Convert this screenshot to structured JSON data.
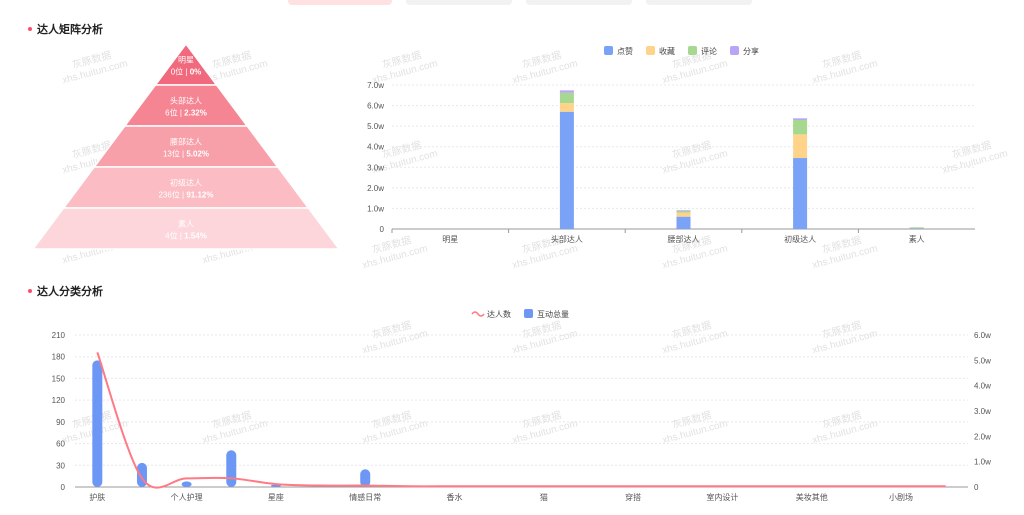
{
  "sections": {
    "matrix_title": "达人矩阵分析",
    "category_title": "达人分类分析"
  },
  "watermark": {
    "line1": "灰豚数据",
    "line2": "xhs.huitun.com"
  },
  "colors": {
    "like": "#7aa2f7",
    "collect": "#ffd48a",
    "comment": "#a6d98f",
    "share": "#b9a4f5",
    "line": "#ff7a85",
    "bar": "#6c97f5",
    "tabs": "#ffe1e1"
  },
  "chart_data": [
    {
      "type": "pyramid",
      "levels": [
        {
          "name": "明星",
          "count": "0位",
          "pct": "0%"
        },
        {
          "name": "头部达人",
          "count": "6位",
          "pct": "2.32%"
        },
        {
          "name": "腰部达人",
          "count": "13位",
          "pct": "5.02%"
        },
        {
          "name": "初级达人",
          "count": "236位",
          "pct": "91.12%"
        },
        {
          "name": "素人",
          "count": "4位",
          "pct": "1.54%"
        }
      ],
      "colors": [
        "#f0697c",
        "#f58593",
        "#f8a0aa",
        "#fbbcc3",
        "#fdd6db"
      ]
    },
    {
      "type": "bar",
      "stacked": true,
      "categories": [
        "明星",
        "头部达人",
        "腰部达人",
        "初级达人",
        "素人"
      ],
      "series": [
        {
          "name": "点赞",
          "values": [
            0,
            5.7,
            0.6,
            3.45,
            0.05
          ]
        },
        {
          "name": "收藏",
          "values": [
            0,
            0.42,
            0.2,
            1.15,
            0.02
          ]
        },
        {
          "name": "评论",
          "values": [
            0,
            0.5,
            0.08,
            0.7,
            0.01
          ]
        },
        {
          "name": "分享",
          "values": [
            0,
            0.12,
            0.03,
            0.08,
            0
          ]
        }
      ],
      "yticks": [
        "0",
        "1.0w",
        "2.0w",
        "3.0w",
        "4.0w",
        "5.0w",
        "6.0w",
        "7.0w"
      ],
      "ylim": [
        0,
        7.0
      ],
      "legend": "top-center"
    },
    {
      "type": "bar+line",
      "categories": [
        "护肤",
        "",
        "个人护理",
        "",
        "星座",
        "",
        "情感日常",
        "",
        "香水",
        "",
        "猫",
        "",
        "穿搭",
        "",
        "室内设计",
        "",
        "美妆其他",
        "",
        "小剧场",
        ""
      ],
      "series": [
        {
          "name": "达人数",
          "type": "line",
          "axis": "left",
          "values": [
            186,
            12,
            12,
            12,
            4,
            2,
            2,
            1,
            1,
            1,
            1,
            1,
            1,
            1,
            1,
            1,
            1,
            1,
            1,
            1
          ]
        },
        {
          "name": "互动总量",
          "type": "bar",
          "axis": "right",
          "values": [
            5.0,
            0.95,
            0.22,
            1.45,
            0.1,
            0,
            0.7,
            0,
            0,
            0,
            0.05,
            0,
            0,
            0,
            0,
            0,
            0,
            0,
            0,
            0
          ]
        }
      ],
      "yticks_left": [
        "0",
        "30",
        "60",
        "90",
        "120",
        "150",
        "180",
        "210"
      ],
      "ylim_left": [
        0,
        210
      ],
      "yticks_right": [
        "0",
        "1.0w",
        "2.0w",
        "3.0w",
        "4.0w",
        "5.0w",
        "6.0w"
      ],
      "ylim_right": [
        0,
        6.0
      ],
      "legend": "top-center"
    }
  ]
}
